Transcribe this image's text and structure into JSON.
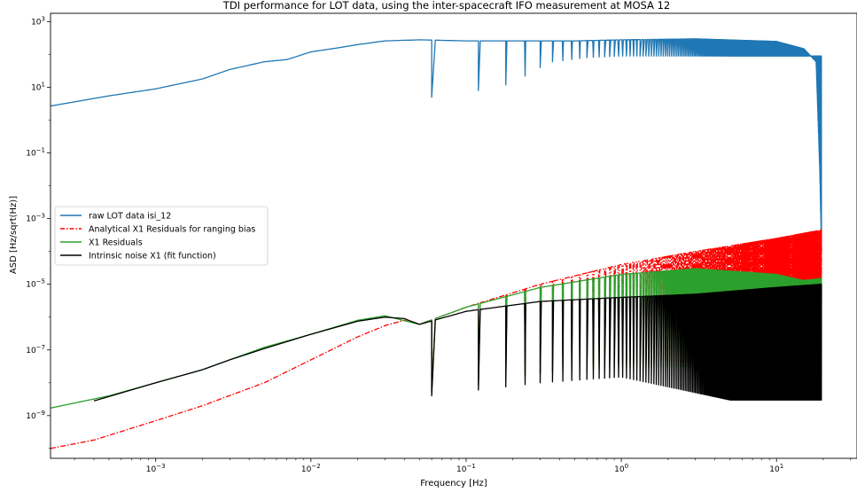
{
  "chart_data": {
    "type": "line",
    "title": "TDI performance for LOT data, using the inter-spacecraft IFO measurement at MOSA 12",
    "xlabel": "Frequency [Hz]",
    "ylabel": "ASD [Hz/sqrt(Hz)]",
    "xscale": "log",
    "yscale": "log",
    "xlim": [
      0.00021,
      33
    ],
    "ylim": [
      5e-11,
      1800
    ],
    "grid": false,
    "legend_position": "center-left",
    "x_ticks": [
      {
        "value": 0.001,
        "base": "10",
        "exp": "−3"
      },
      {
        "value": 0.01,
        "base": "10",
        "exp": "−2"
      },
      {
        "value": 0.1,
        "base": "10",
        "exp": "−1"
      },
      {
        "value": 1,
        "base": "10",
        "exp": "0"
      },
      {
        "value": 10,
        "base": "10",
        "exp": "1"
      }
    ],
    "y_ticks": [
      {
        "value": 1e-09,
        "base": "10",
        "exp": "−9"
      },
      {
        "value": 1e-07,
        "base": "10",
        "exp": "−7"
      },
      {
        "value": 1e-05,
        "base": "10",
        "exp": "−5"
      },
      {
        "value": 0.001,
        "base": "10",
        "exp": "−3"
      },
      {
        "value": 0.1,
        "base": "10",
        "exp": "−1"
      },
      {
        "value": 10,
        "base": "10",
        "exp": "1"
      },
      {
        "value": 1000,
        "base": "10",
        "exp": "3"
      }
    ],
    "notch_spacing_hz": 0.06,
    "series": [
      {
        "name": "raw LOT data isi_12",
        "color": "#1f77b4",
        "style": "solid",
        "envelope": [
          [
            0.00021,
            2.7
          ],
          [
            0.0005,
            5.5
          ],
          [
            0.001,
            9
          ],
          [
            0.002,
            18
          ],
          [
            0.003,
            35
          ],
          [
            0.005,
            60
          ],
          [
            0.007,
            70
          ],
          [
            0.01,
            120
          ],
          [
            0.015,
            160
          ],
          [
            0.02,
            200
          ],
          [
            0.03,
            260
          ],
          [
            0.05,
            280
          ],
          [
            0.1,
            260
          ],
          [
            0.5,
            260
          ],
          [
            1,
            280
          ],
          [
            3,
            300
          ],
          [
            10,
            250
          ],
          [
            15,
            150
          ],
          [
            18,
            60
          ],
          [
            19,
            0.03
          ],
          [
            19.5,
            0.0001
          ]
        ],
        "notch_minima": [
          [
            0.06,
            5
          ],
          [
            0.12,
            8
          ],
          [
            0.18,
            12
          ],
          [
            0.24,
            22
          ],
          [
            0.3,
            40
          ],
          [
            0.36,
            60
          ],
          [
            0.6,
            80
          ],
          [
            1,
            90
          ]
        ]
      },
      {
        "name": "Analytical X1 Residuals for ranging bias",
        "color": "#ff0000",
        "style": "dashdot",
        "envelope": [
          [
            0.00021,
            1e-10
          ],
          [
            0.0004,
            1.8e-10
          ],
          [
            0.001,
            7e-10
          ],
          [
            0.002,
            2e-09
          ],
          [
            0.005,
            1e-08
          ],
          [
            0.01,
            5e-08
          ],
          [
            0.02,
            2.5e-07
          ],
          [
            0.03,
            5.5e-07
          ],
          [
            0.04,
            8e-07
          ],
          [
            0.05,
            6e-07
          ],
          [
            0.1,
            2e-06
          ],
          [
            0.3,
            1e-05
          ],
          [
            1,
            4e-05
          ],
          [
            3,
            0.0001
          ],
          [
            10,
            0.00025
          ],
          [
            19.5,
            0.00045
          ]
        ],
        "notch_minima": [
          [
            0.06,
            5e-09
          ],
          [
            0.12,
            8e-09
          ],
          [
            0.3,
            2e-08
          ],
          [
            1,
            4e-08
          ]
        ]
      },
      {
        "name": "X1 Residuals",
        "color": "#2ca02c",
        "style": "solid",
        "envelope": [
          [
            0.00021,
            1.7e-09
          ],
          [
            0.0005,
            4e-09
          ],
          [
            0.001,
            1e-08
          ],
          [
            0.002,
            2.5e-08
          ],
          [
            0.003,
            5e-08
          ],
          [
            0.005,
            1.2e-07
          ],
          [
            0.01,
            3e-07
          ],
          [
            0.02,
            8e-07
          ],
          [
            0.03,
            1.1e-06
          ],
          [
            0.05,
            6e-07
          ],
          [
            0.1,
            2e-06
          ],
          [
            0.3,
            8e-06
          ],
          [
            1,
            2e-05
          ],
          [
            3,
            3e-05
          ],
          [
            10,
            2e-05
          ],
          [
            15,
            1.3e-05
          ],
          [
            19.5,
            1.5e-05
          ]
        ],
        "notch_minima": [
          [
            0.06,
            5e-09
          ],
          [
            0.12,
            8e-09
          ],
          [
            0.3,
            2e-08
          ],
          [
            1,
            3e-08
          ]
        ]
      },
      {
        "name": "Intrinsic noise X1 (fit function)",
        "color": "#000000",
        "style": "solid",
        "envelope": [
          [
            0.0004,
            2.8e-09
          ],
          [
            0.001,
            1e-08
          ],
          [
            0.002,
            2.5e-08
          ],
          [
            0.003,
            5e-08
          ],
          [
            0.005,
            1.1e-07
          ],
          [
            0.01,
            3e-07
          ],
          [
            0.02,
            7.5e-07
          ],
          [
            0.03,
            1e-06
          ],
          [
            0.04,
            9e-07
          ],
          [
            0.05,
            6e-07
          ],
          [
            0.1,
            1.5e-06
          ],
          [
            0.3,
            3e-06
          ],
          [
            1,
            4e-06
          ],
          [
            3,
            5e-06
          ],
          [
            10,
            8e-06
          ],
          [
            19.5,
            1e-05
          ]
        ],
        "notch_minima": [
          [
            0.06,
            4e-09
          ],
          [
            0.12,
            6e-09
          ],
          [
            0.3,
            1e-08
          ],
          [
            1,
            1.5e-08
          ],
          [
            5,
            3e-09
          ]
        ]
      }
    ]
  }
}
